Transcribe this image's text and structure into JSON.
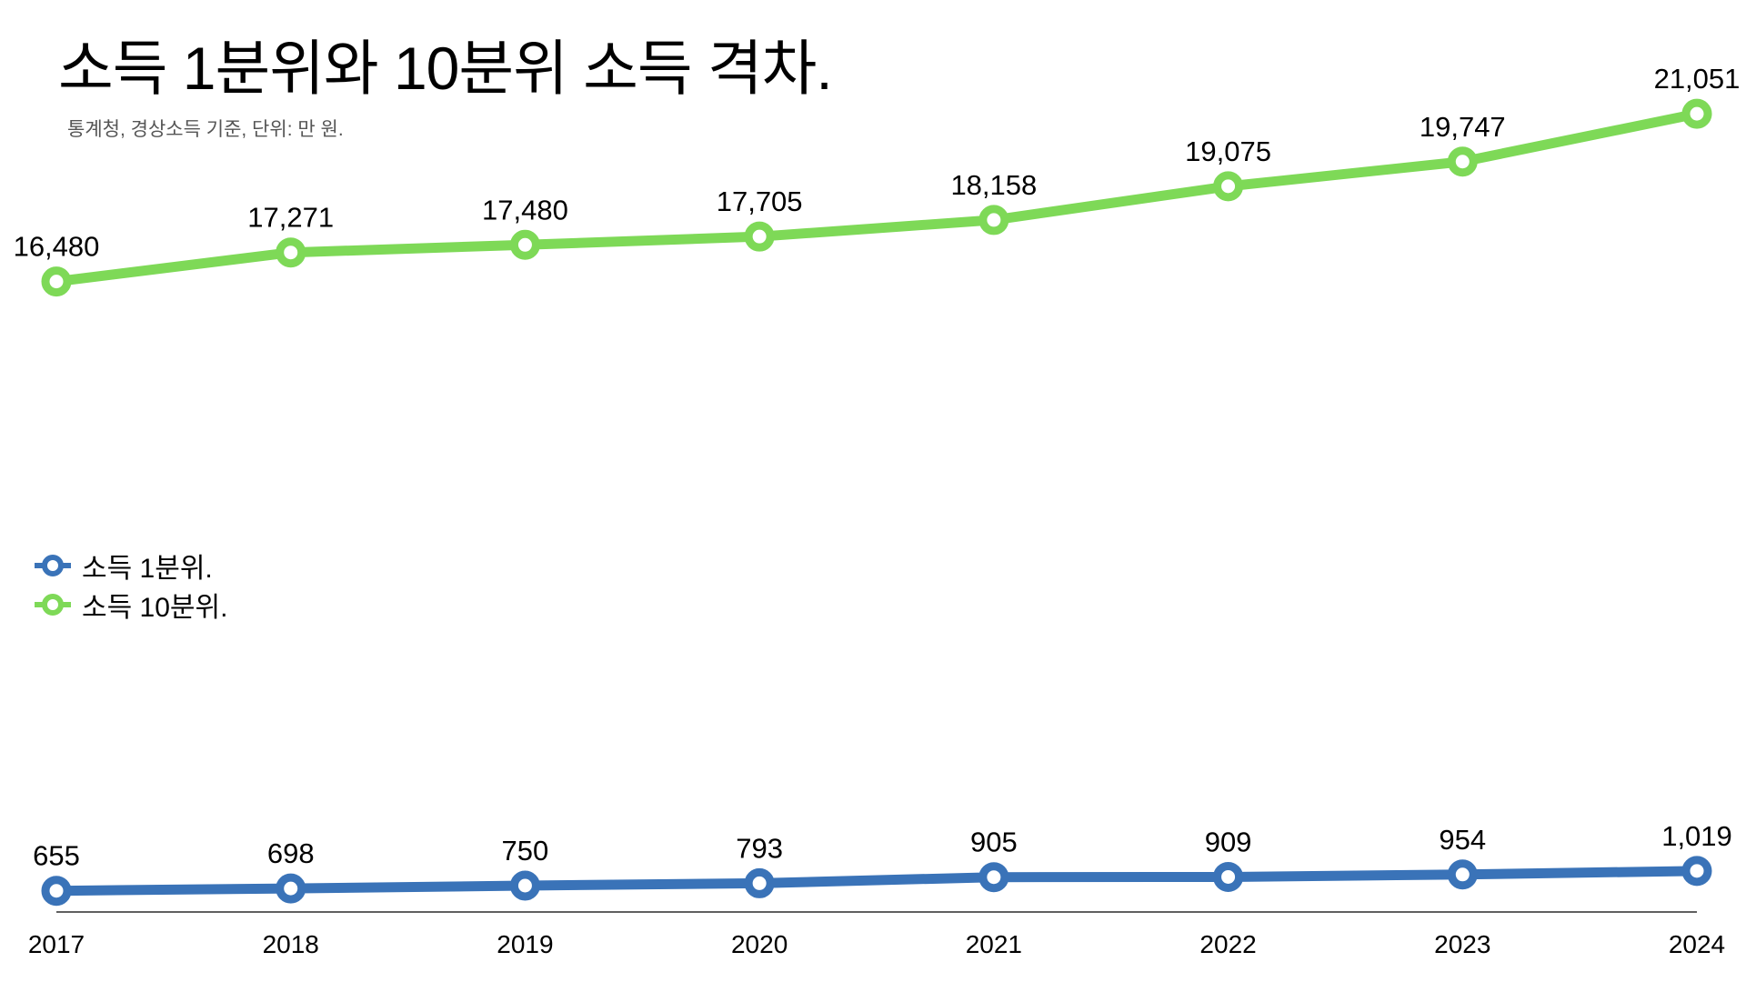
{
  "chart_data": {
    "type": "line",
    "title": "소득 1분위와 10분위 소득 격차.",
    "subtitle": "통계청, 경상소득 기준, 단위: 만 원.",
    "categories": [
      "2017",
      "2018",
      "2019",
      "2020",
      "2021",
      "2022",
      "2023",
      "2024"
    ],
    "series": [
      {
        "name": "소득 1분위.",
        "color": "#3a73b8",
        "values": [
          655,
          698,
          750,
          793,
          905,
          909,
          954,
          1019
        ],
        "labels": [
          "655",
          "698",
          "750",
          "793",
          "905",
          "909",
          "954",
          "1,019"
        ]
      },
      {
        "name": "소득 10분위.",
        "color": "#7ed957",
        "values": [
          16480,
          17271,
          17480,
          17705,
          18158,
          19075,
          19747,
          21051
        ],
        "labels": [
          "16,480",
          "17,271",
          "17,480",
          "17,705",
          "18,158",
          "19,075",
          "19,747",
          "21,051"
        ]
      }
    ],
    "ylim": [
      0,
      21051
    ],
    "grid": false,
    "legend_position": "left-middle",
    "xlabel": "",
    "ylabel": ""
  }
}
